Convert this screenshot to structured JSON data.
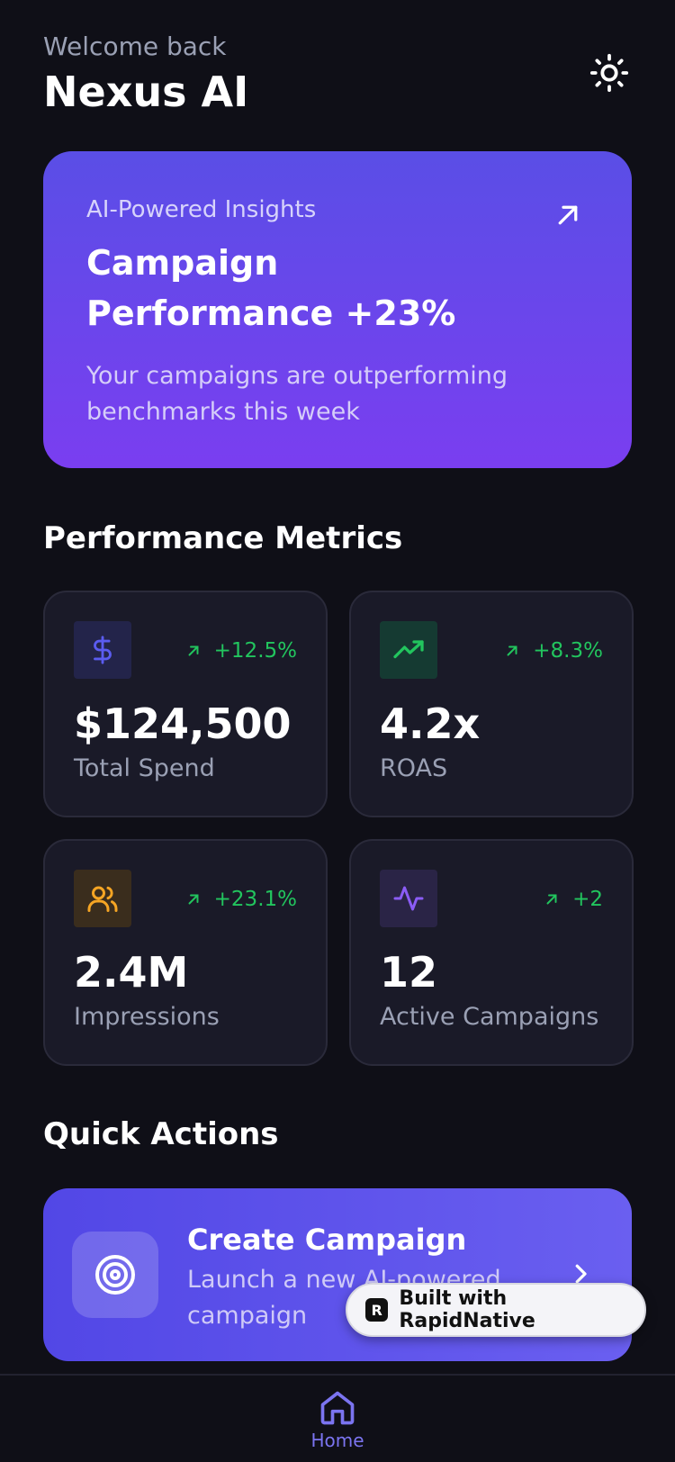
{
  "header": {
    "welcome": "Welcome back",
    "title": "Nexus AI",
    "theme_icon": "sun-icon"
  },
  "insight": {
    "kicker": "AI-Powered Insights",
    "title": "Campaign Performance +23%",
    "description": "Your campaigns are outperforming benchmarks this week",
    "icon": "arrow-up-right-icon"
  },
  "metrics_section": {
    "title": "Performance Metrics",
    "cards": [
      {
        "icon": "dollar-icon",
        "icon_color": "#5b5cf0",
        "icon_bg": "#23244a",
        "change": "+12.5%",
        "value": "$124,500",
        "label": "Total Spend"
      },
      {
        "icon": "trending-up-icon",
        "icon_color": "#22c55e",
        "icon_bg": "#153a32",
        "change": "+8.3%",
        "value": "4.2x",
        "label": "ROAS"
      },
      {
        "icon": "users-icon",
        "icon_color": "#f5a524",
        "icon_bg": "#3a2d1d",
        "change": "+23.1%",
        "value": "2.4M",
        "label": "Impressions"
      },
      {
        "icon": "activity-icon",
        "icon_color": "#8b5cf6",
        "icon_bg": "#2a2446",
        "change": "+2",
        "value": "12",
        "label": "Active Campaigns"
      }
    ],
    "positive_color": "#22c55e"
  },
  "actions_section": {
    "title": "Quick Actions",
    "primary": {
      "icon": "target-icon",
      "title": "Create Campaign",
      "description": "Launch a new AI-powered campaign"
    }
  },
  "badge": {
    "logo": "R",
    "text": "Built with RapidNative"
  },
  "nav": {
    "home_label": "Home",
    "active_color": "#7b74f0"
  }
}
